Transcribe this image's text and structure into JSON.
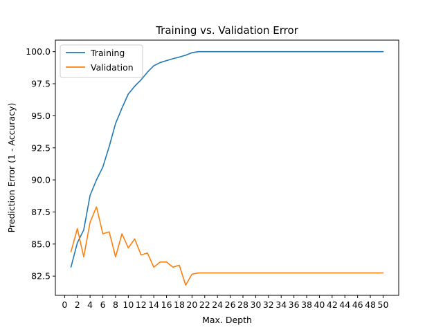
{
  "chart_data": {
    "type": "line",
    "title": "Training vs. Validation Error",
    "xlabel": "Max. Depth",
    "ylabel": "Prediction Error (1 - Accuracy)",
    "xlim": [
      -1.45,
      52.45
    ],
    "ylim": [
      81.0,
      100.9
    ],
    "xticks": [
      0,
      2,
      4,
      6,
      8,
      10,
      12,
      14,
      16,
      18,
      20,
      22,
      24,
      26,
      28,
      30,
      32,
      34,
      36,
      38,
      40,
      42,
      44,
      46,
      48,
      50
    ],
    "yticks": [
      82.5,
      85.0,
      87.5,
      90.0,
      92.5,
      95.0,
      97.5,
      100.0
    ],
    "ytick_labels": [
      "82.5",
      "85.0",
      "87.5",
      "90.0",
      "92.5",
      "95.0",
      "97.5",
      "100.0"
    ],
    "grid": false,
    "legend_position": "top-left",
    "x": [
      1,
      2,
      3,
      4,
      5,
      6,
      7,
      8,
      9,
      10,
      11,
      12,
      13,
      14,
      15,
      16,
      17,
      18,
      19,
      20,
      21,
      22,
      23,
      24,
      25,
      26,
      27,
      28,
      29,
      30,
      31,
      32,
      33,
      34,
      35,
      36,
      37,
      38,
      39,
      40,
      41,
      42,
      43,
      44,
      45,
      46,
      47,
      48,
      49,
      50
    ],
    "series": [
      {
        "name": "Training",
        "color": "#1f77b4",
        "values": [
          83.2,
          85.1,
          86.1,
          88.8,
          90.0,
          91.0,
          92.6,
          94.4,
          95.6,
          96.7,
          97.3,
          97.8,
          98.4,
          98.9,
          99.15,
          99.3,
          99.45,
          99.58,
          99.72,
          99.92,
          100.0,
          100.0,
          100.0,
          100.0,
          100.0,
          100.0,
          100.0,
          100.0,
          100.0,
          100.0,
          100.0,
          100.0,
          100.0,
          100.0,
          100.0,
          100.0,
          100.0,
          100.0,
          100.0,
          100.0,
          100.0,
          100.0,
          100.0,
          100.0,
          100.0,
          100.0,
          100.0,
          100.0,
          100.0,
          100.0
        ]
      },
      {
        "name": "Validation",
        "color": "#ff7f0e",
        "values": [
          84.4,
          86.2,
          84.0,
          86.7,
          87.9,
          85.8,
          85.95,
          84.0,
          85.8,
          84.7,
          85.4,
          84.15,
          84.3,
          83.2,
          83.6,
          83.6,
          83.2,
          83.35,
          81.8,
          82.65,
          82.75,
          82.75,
          82.75,
          82.75,
          82.75,
          82.75,
          82.75,
          82.75,
          82.75,
          82.75,
          82.75,
          82.75,
          82.75,
          82.75,
          82.75,
          82.75,
          82.75,
          82.75,
          82.75,
          82.75,
          82.75,
          82.75,
          82.75,
          82.75,
          82.75,
          82.75,
          82.75,
          82.75,
          82.75,
          82.75
        ]
      }
    ]
  }
}
